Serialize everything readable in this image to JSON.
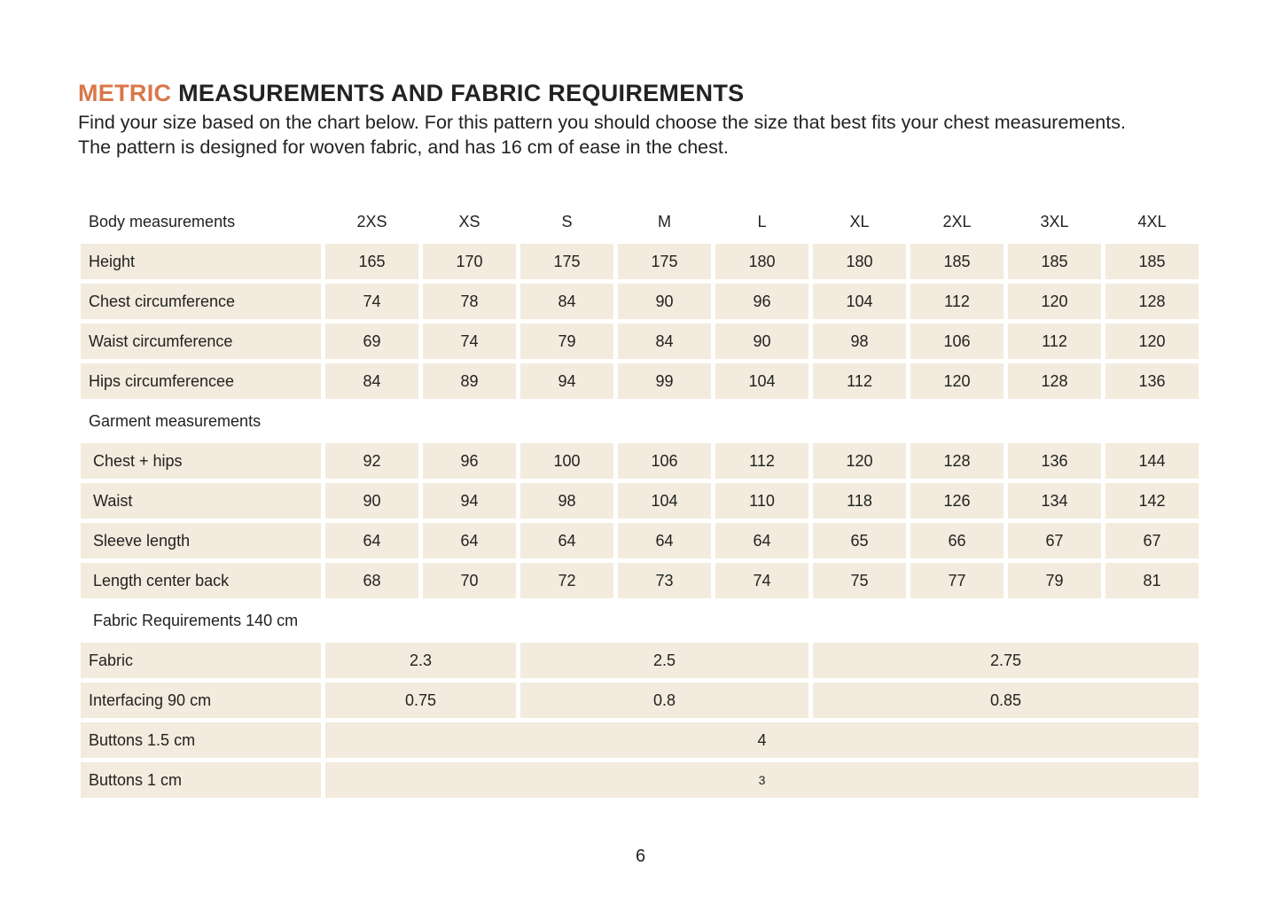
{
  "title": {
    "accent": "METRIC",
    "rest": " MEASUREMENTS AND FABRIC REQUIREMENTS"
  },
  "intro": "Find your size based on the chart below. For this pattern you should choose the size that best fits your chest measurements. The pattern is designed for woven fabric, and has 16 cm of ease in the chest.",
  "colors": {
    "accent": "#d9774a",
    "cell_background": "#f3ebdd"
  },
  "table": {
    "header_label": "Body measurements",
    "sizes": [
      "2XS",
      "XS",
      "S",
      "M",
      "L",
      "XL",
      "2XL",
      "3XL",
      "4XL"
    ],
    "body_rows": [
      {
        "label": "Height",
        "values": [
          "165",
          "170",
          "175",
          "175",
          "180",
          "180",
          "185",
          "185",
          "185"
        ]
      },
      {
        "label": "Chest circumference",
        "values": [
          "74",
          "78",
          "84",
          "90",
          "96",
          "104",
          "112",
          "120",
          "128"
        ]
      },
      {
        "label": "Waist circumference",
        "values": [
          "69",
          "74",
          "79",
          "84",
          "90",
          "98",
          "106",
          "112",
          "120"
        ]
      },
      {
        "label": "Hips circumferencee",
        "values": [
          "84",
          "89",
          "94",
          "99",
          "104",
          "112",
          "120",
          "128",
          "136"
        ]
      }
    ],
    "garment_label": "Garment measurements",
    "garment_rows": [
      {
        "label": "Chest + hips",
        "values": [
          "92",
          "96",
          "100",
          "106",
          "112",
          "120",
          "128",
          "136",
          "144"
        ]
      },
      {
        "label": "Waist",
        "values": [
          "90",
          "94",
          "98",
          "104",
          "110",
          "118",
          "126",
          "134",
          "142"
        ]
      },
      {
        "label": "Sleeve length",
        "values": [
          "64",
          "64",
          "64",
          "64",
          "64",
          "65",
          "66",
          "67",
          "67"
        ]
      },
      {
        "label": "Length center back",
        "values": [
          "68",
          "70",
          "72",
          "73",
          "74",
          "75",
          "77",
          "79",
          "81"
        ]
      }
    ],
    "fabric_label": "Fabric Requirements 140 cm",
    "fabric_rows": [
      {
        "label": "Fabric",
        "cells": [
          {
            "value": "2.3",
            "span": 2
          },
          {
            "value": "2.5",
            "span": 3
          },
          {
            "value": "2.75",
            "span": 4
          }
        ]
      },
      {
        "label": "Interfacing 90 cm",
        "cells": [
          {
            "value": "0.75",
            "span": 2
          },
          {
            "value": "0.8",
            "span": 3
          },
          {
            "value": "0.85",
            "span": 4
          }
        ]
      },
      {
        "label": "Buttons 1.5 cm",
        "cells": [
          {
            "value": "4",
            "span": 9
          }
        ]
      },
      {
        "label": "Buttons 1 cm",
        "cells": [
          {
            "value": "3",
            "span": 9,
            "small": true
          }
        ]
      }
    ]
  },
  "page_number": "6"
}
